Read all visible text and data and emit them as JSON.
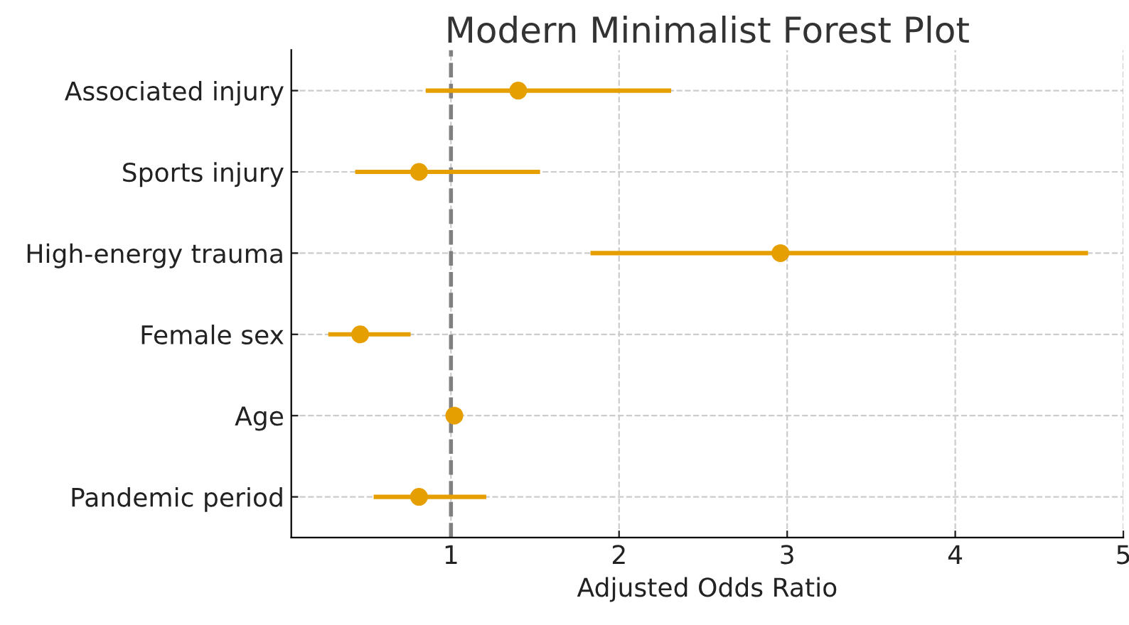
{
  "chart_data": {
    "type": "scatter",
    "orientation": "horizontal",
    "title": "Modern Minimalist Forest Plot",
    "xlabel": "Adjusted Odds Ratio",
    "categories": [
      "Associated injury",
      "Sports injury",
      "High-energy trauma",
      "Female sex",
      "Age",
      "Pandemic period"
    ],
    "values": [
      1.4,
      0.81,
      2.96,
      0.46,
      1.02,
      0.81
    ],
    "errors": [
      [
        0.85,
        2.31
      ],
      [
        0.43,
        1.53
      ],
      [
        1.83,
        4.79
      ],
      [
        0.27,
        0.76
      ],
      null,
      [
        0.54,
        1.21
      ]
    ],
    "color": "#e69f00",
    "marker": "circle",
    "xlim": [
      0.05,
      5.0
    ],
    "xticks": [
      1,
      2,
      3,
      4,
      5
    ],
    "ref_lines": [
      {
        "axis": "x",
        "value": 1,
        "color": "#808080",
        "line_style": "dashed"
      }
    ],
    "grid": true
  }
}
